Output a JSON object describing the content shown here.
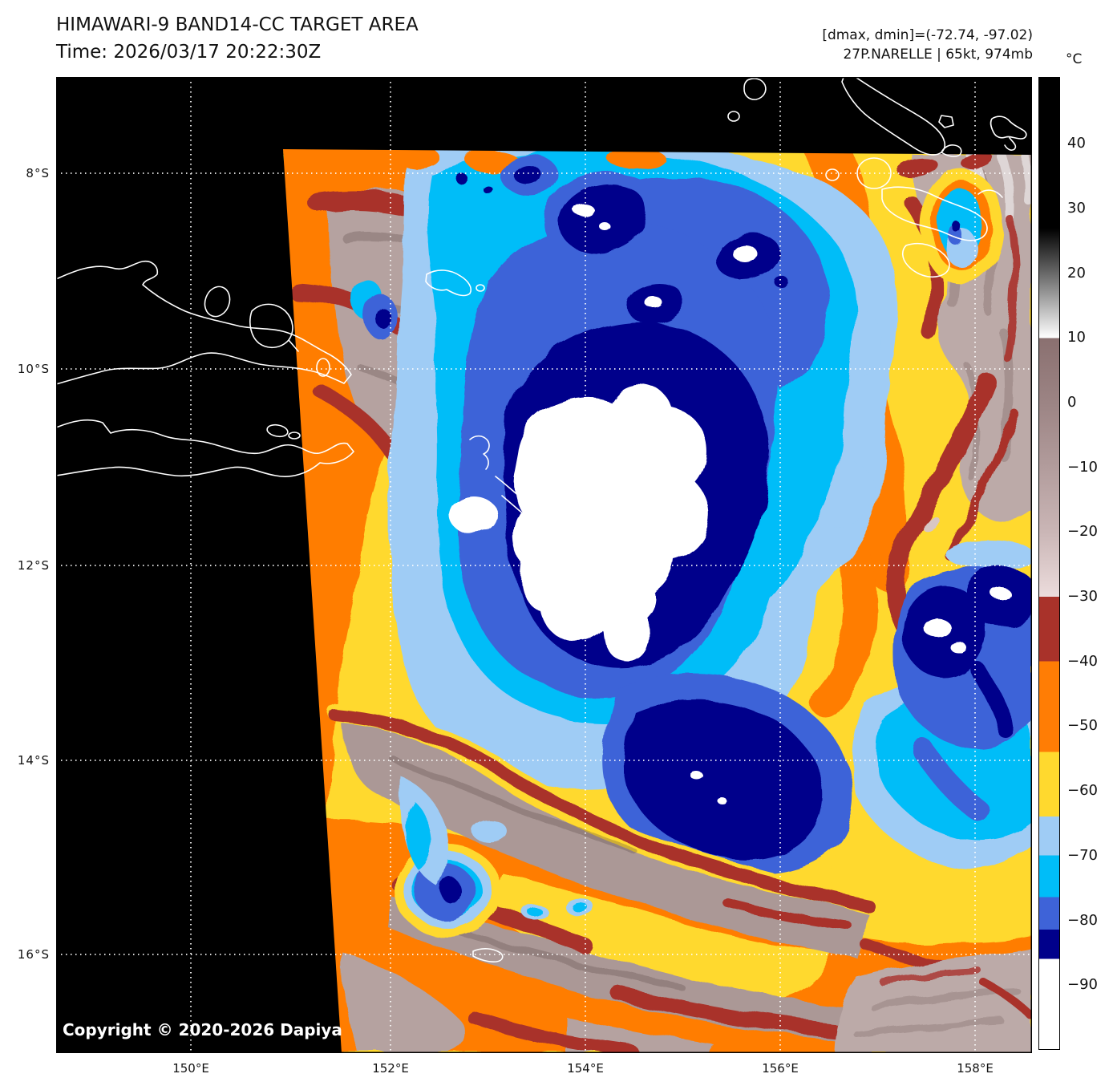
{
  "header": {
    "title": "HIMAWARI-9 BAND14-CC TARGET AREA",
    "time_line": "Time: 2026/03/17 20:22:30Z",
    "range_line": "[dmax, dmin]=(-72.74, -97.02)",
    "storm_line": "27P.NARELLE | 65kt, 974mb"
  },
  "copyright": "Copyright © 2020-2026 Dapiya",
  "colorbar": {
    "unit": "°C",
    "tick_labels": [
      "40",
      "30",
      "20",
      "10",
      "0",
      "−10",
      "−20",
      "−30",
      "−40",
      "−50",
      "−60",
      "−70",
      "−80",
      "−90"
    ],
    "tick_values": [
      40,
      30,
      20,
      10,
      0,
      -10,
      -20,
      -30,
      -40,
      -50,
      -60,
      -70,
      -80,
      -90
    ],
    "top_value": 50.3,
    "bottom_value": -100,
    "gradient_stops": [
      {
        "t": 50.3,
        "c": "#000000"
      },
      {
        "t": 27,
        "c": "#000000"
      },
      {
        "t": 10,
        "c": "#ffffff"
      },
      {
        "t": 10,
        "c": "#8a7070"
      },
      {
        "t": 0,
        "c": "#9c8484"
      },
      {
        "t": -10,
        "c": "#b29c9c"
      },
      {
        "t": -20,
        "c": "#cab6b6"
      },
      {
        "t": -30,
        "c": "#ecdcdc"
      },
      {
        "t": -30,
        "c": "#a9322a"
      },
      {
        "t": -40,
        "c": "#a9322a"
      },
      {
        "t": -40,
        "c": "#ff7d05"
      },
      {
        "t": -54,
        "c": "#ff7d05"
      },
      {
        "t": -54,
        "c": "#ffd92e"
      },
      {
        "t": -64,
        "c": "#ffd92e"
      },
      {
        "t": -64,
        "c": "#9fccf5"
      },
      {
        "t": -70,
        "c": "#9fccf5"
      },
      {
        "t": -70,
        "c": "#00bdf8"
      },
      {
        "t": -76.5,
        "c": "#00bdf8"
      },
      {
        "t": -76.5,
        "c": "#3e63d8"
      },
      {
        "t": -81.5,
        "c": "#3e63d8"
      },
      {
        "t": -81.5,
        "c": "#00008b"
      },
      {
        "t": -86,
        "c": "#00008b"
      },
      {
        "t": -86,
        "c": "#ffffff"
      },
      {
        "t": -100,
        "c": "#ffffff"
      }
    ]
  },
  "axes": {
    "lat_labels": [
      "8°S",
      "10°S",
      "12°S",
      "14°S",
      "16°S"
    ],
    "lon_labels": [
      "150°E",
      "152°E",
      "154°E",
      "156°E",
      "158°E"
    ]
  },
  "palette": {
    "yellow": "#ffd92e",
    "orange": "#ff7d05",
    "darkred": "#a9322a",
    "mauve": "#b5a2a0",
    "mauve2": "#ab9896",
    "mauve3": "#bcaaa8",
    "pale": "#d8c6c4",
    "lightblue": "#9fccf5",
    "cyan": "#00bdf8",
    "royal": "#3e63d8",
    "navy": "#00008b",
    "white": "#ffffff"
  },
  "chart_data": {
    "type": "heatmap",
    "title": "HIMAWARI-9 BAND14-CC TARGET AREA",
    "time": "2026/03/17 20:22:30Z",
    "storm": {
      "id": "27P",
      "name": "NARELLE",
      "intensity_kt": 65,
      "pressure_mb": 974
    },
    "dmax_c": -72.74,
    "dmin_c": -97.02,
    "colorbar_unit": "°C",
    "colorbar_ticks": [
      40,
      30,
      20,
      10,
      0,
      -10,
      -20,
      -30,
      -40,
      -50,
      -60,
      -70,
      -80,
      -90
    ],
    "x_ticks_lon_e": [
      150,
      152,
      154,
      156,
      158
    ],
    "y_ticks_lat_s": [
      8,
      10,
      12,
      14,
      16
    ],
    "legend_position": "right",
    "grid": "dotted-white"
  }
}
